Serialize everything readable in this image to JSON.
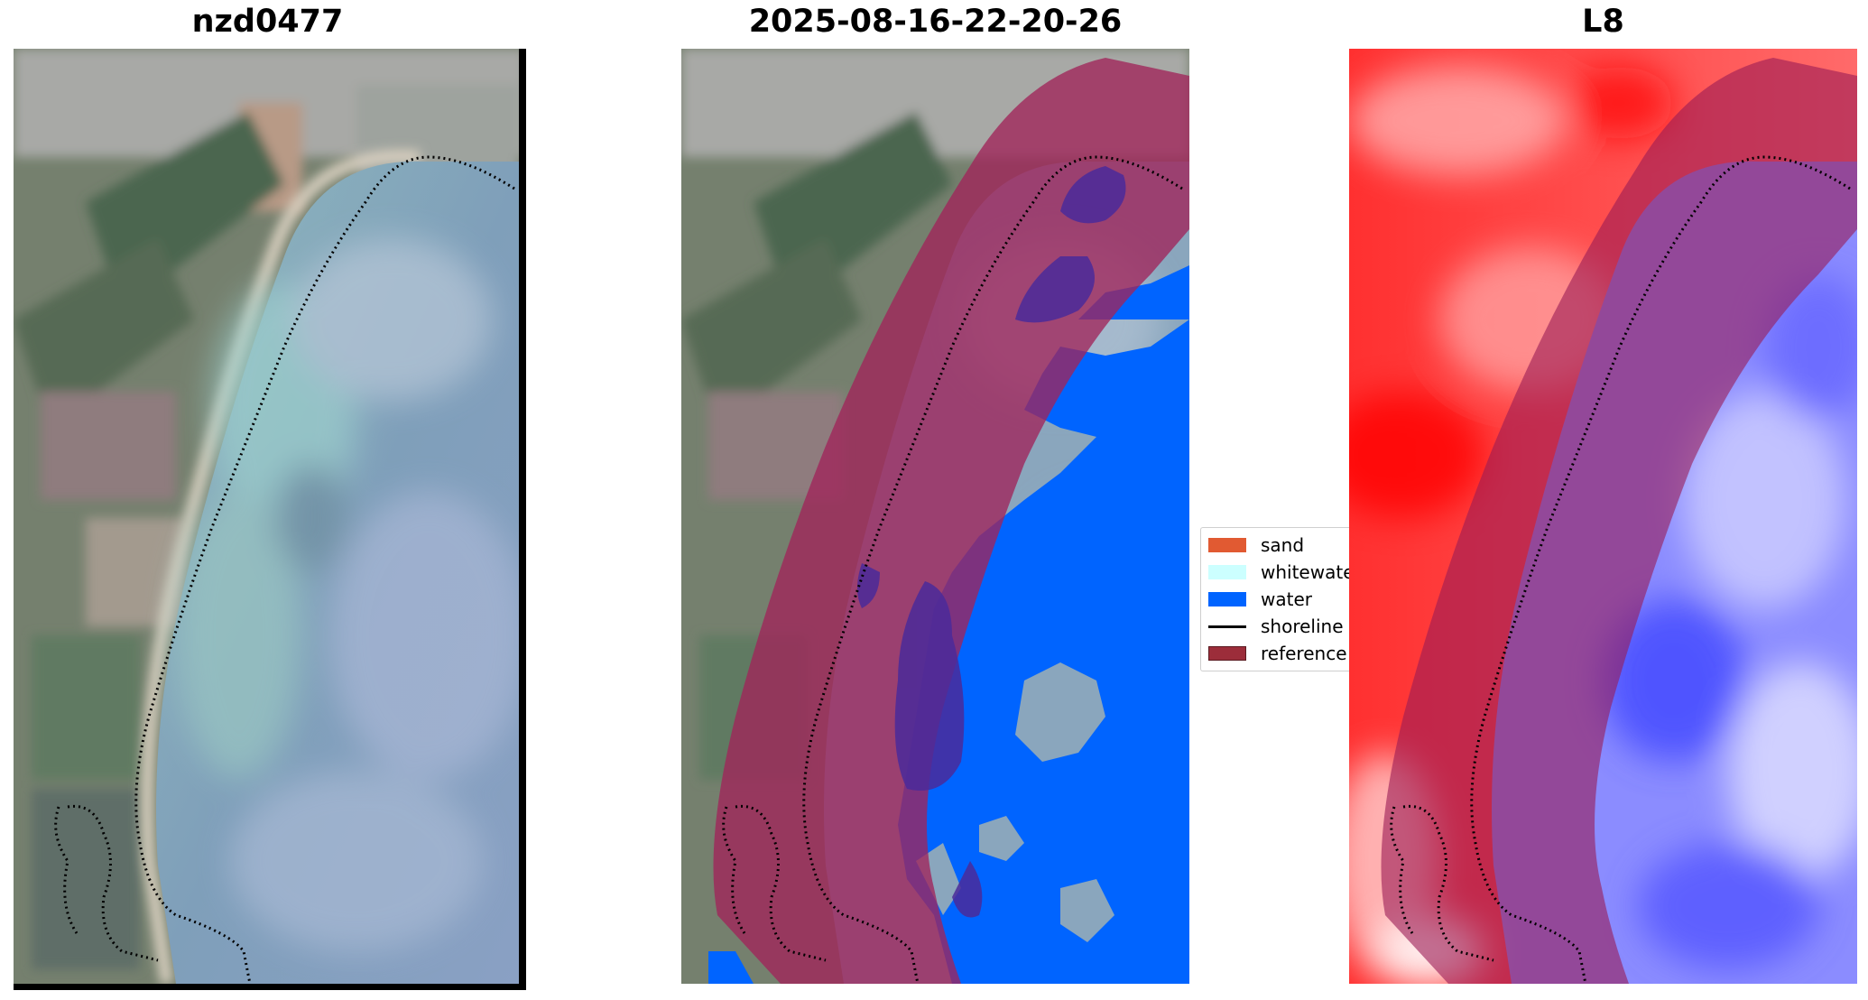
{
  "panels": {
    "left": {
      "title": "nzd0477"
    },
    "middle": {
      "title": "2025-08-16-22-20-26"
    },
    "right": {
      "title": "L8"
    }
  },
  "legend": {
    "items": [
      {
        "label": "sand",
        "color": "#e15a32"
      },
      {
        "label": "whitewater",
        "color": "#ccffff"
      },
      {
        "label": "water",
        "color": "#0064ff"
      },
      {
        "label": "shoreline",
        "color": "#000000"
      },
      {
        "label": "reference",
        "color": "#9c2d3a"
      }
    ]
  },
  "colors": {
    "water_class": "#0064ff",
    "reference_buffer": "#a0245a",
    "index_positive": "#ff2020",
    "index_negative": "#3040ff"
  }
}
